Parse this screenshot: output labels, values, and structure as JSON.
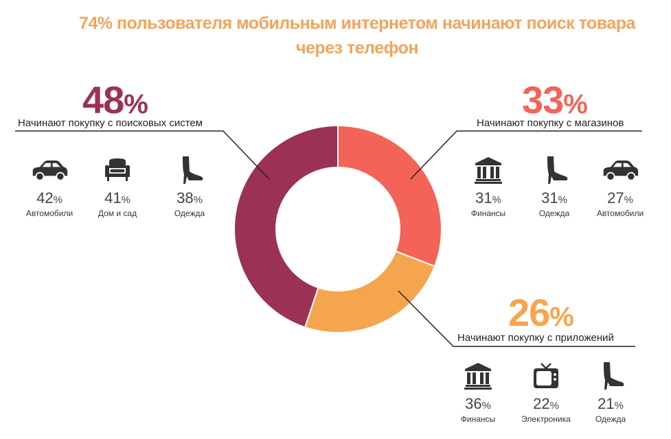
{
  "title": {
    "line1": "74% пользователя мобильным интернетом начинают поиск товара",
    "line2": "через телефон"
  },
  "colors": {
    "search": "#9b3254",
    "stores": "#f46357",
    "apps": "#f6a54f",
    "title": "#f2a45c",
    "icon": "#333333"
  },
  "chart_data": {
    "type": "pie",
    "variant": "donut",
    "title": "74% пользователя мобильным интернетом начинают поиск товара через телефон",
    "categories": [
      "Начинают покупку с поисковых систем",
      "Начинают покупку с магазинов",
      "Начинают покупку с приложений"
    ],
    "values": [
      48,
      33,
      26
    ],
    "segment_colors": [
      "#9b3254",
      "#f46357",
      "#f6a54f"
    ]
  },
  "groups": {
    "search": {
      "number": "48",
      "percent_sign": "%",
      "caption": "Начинают покупку с поисковых систем",
      "items": [
        {
          "icon": "car-icon",
          "value": "42",
          "sign": "%",
          "label": "Автомобили"
        },
        {
          "icon": "armchair-icon",
          "value": "41",
          "sign": "%",
          "label": "Дом и сад"
        },
        {
          "icon": "boot-icon",
          "value": "38",
          "sign": "%",
          "label": "Одежда"
        }
      ]
    },
    "stores": {
      "number": "33",
      "percent_sign": "%",
      "caption": "Начинают покупку с магазинов",
      "items": [
        {
          "icon": "bank-icon",
          "value": "31",
          "sign": "%",
          "label": "Финансы"
        },
        {
          "icon": "boot-icon",
          "value": "31",
          "sign": "%",
          "label": "Одежда"
        },
        {
          "icon": "car-icon",
          "value": "27",
          "sign": "%",
          "label": "Автомобили"
        }
      ]
    },
    "apps": {
      "number": "26",
      "percent_sign": "%",
      "caption": "Начинают покупку с приложений",
      "items": [
        {
          "icon": "bank-icon",
          "value": "36",
          "sign": "%",
          "label": "Финансы"
        },
        {
          "icon": "tv-icon",
          "value": "22",
          "sign": "%",
          "label": "Электроника"
        },
        {
          "icon": "boot-icon",
          "value": "21",
          "sign": "%",
          "label": "Одежда"
        }
      ]
    }
  }
}
